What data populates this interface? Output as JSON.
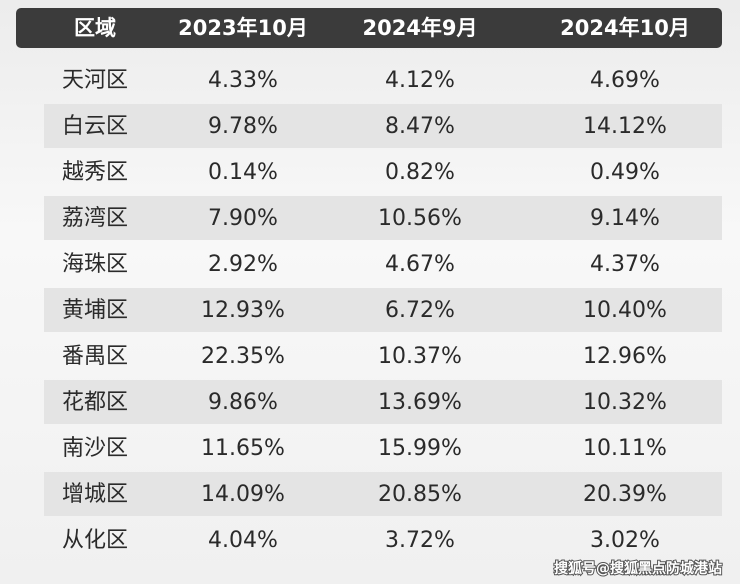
{
  "table": {
    "headers": [
      "区域",
      "2023年10月",
      "2024年9月",
      "2024年10月"
    ],
    "rows": [
      [
        "天河区",
        "4.33%",
        "4.12%",
        "4.69%"
      ],
      [
        "白云区",
        "9.78%",
        "8.47%",
        "14.12%"
      ],
      [
        "越秀区",
        "0.14%",
        "0.82%",
        "0.49%"
      ],
      [
        "荔湾区",
        "7.90%",
        "10.56%",
        "9.14%"
      ],
      [
        "海珠区",
        "2.92%",
        "4.67%",
        "4.37%"
      ],
      [
        "黄埔区",
        "12.93%",
        "6.72%",
        "10.40%"
      ],
      [
        "番禺区",
        "22.35%",
        "10.37%",
        "12.96%"
      ],
      [
        "花都区",
        "9.86%",
        "13.69%",
        "10.32%"
      ],
      [
        "南沙区",
        "11.65%",
        "15.99%",
        "10.11%"
      ],
      [
        "增城区",
        "14.09%",
        "20.85%",
        "20.39%"
      ],
      [
        "从化区",
        "4.04%",
        "3.72%",
        "3.02%"
      ]
    ]
  },
  "watermark": "搜狐号@搜狐黑点防城港站"
}
